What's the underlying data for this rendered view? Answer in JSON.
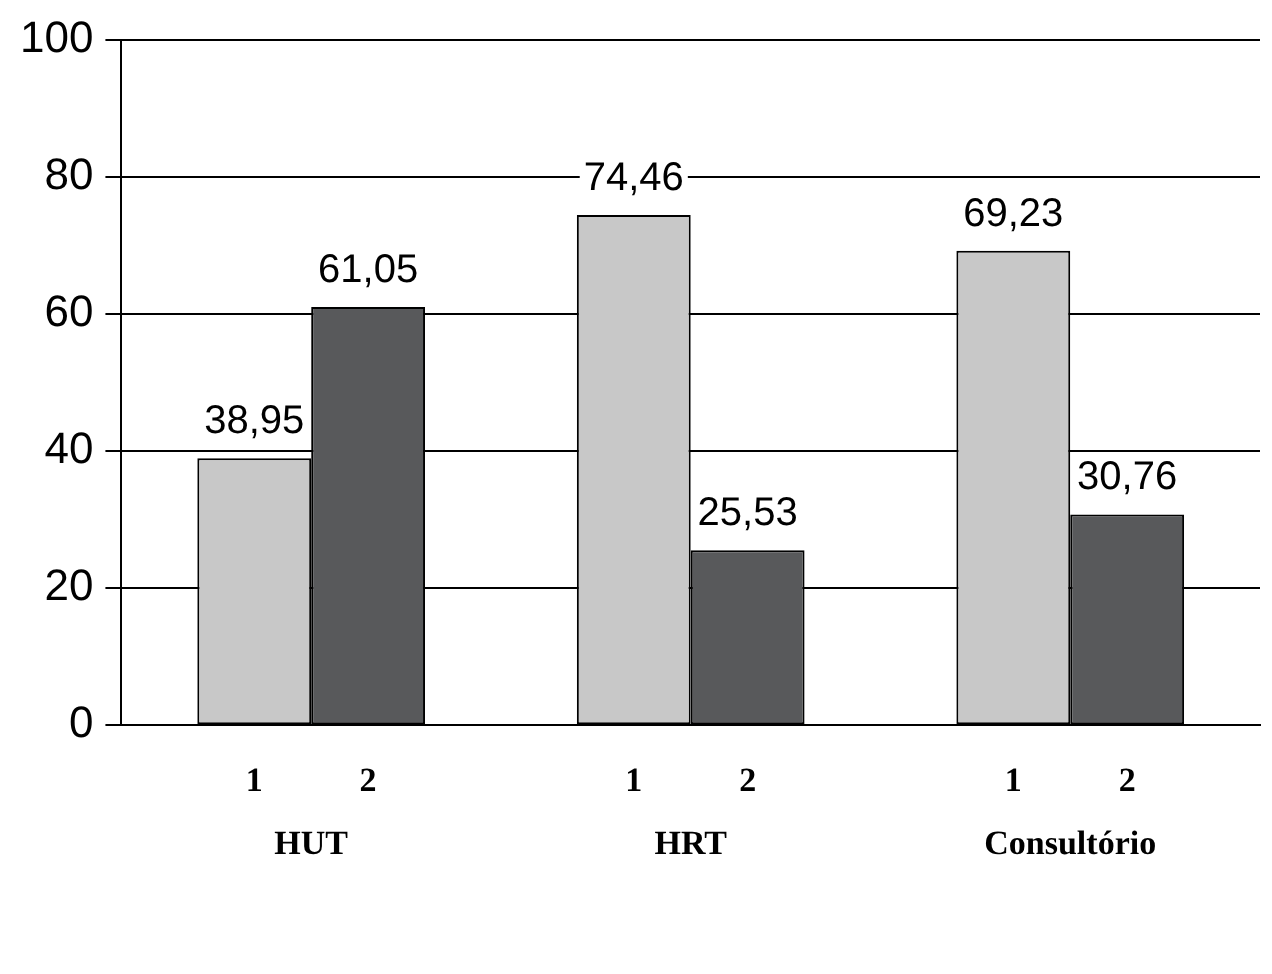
{
  "chart_data": {
    "type": "bar",
    "categories": [
      "HUT",
      "HRT",
      "Consultório"
    ],
    "series": [
      {
        "name": "1",
        "color": "#c8c8c8",
        "values": [
          38.95,
          74.46,
          69.23
        ]
      },
      {
        "name": "2",
        "color": "#58595b",
        "values": [
          61.05,
          25.53,
          30.76
        ]
      }
    ],
    "value_labels": [
      [
        "38,95",
        "74,46",
        "69,23"
      ],
      [
        "61,05",
        "25,53",
        "30,76"
      ]
    ],
    "ylim": [
      0,
      100
    ],
    "yticks": [
      0,
      20,
      40,
      60,
      80,
      100
    ],
    "grid": "y",
    "legend": false
  }
}
